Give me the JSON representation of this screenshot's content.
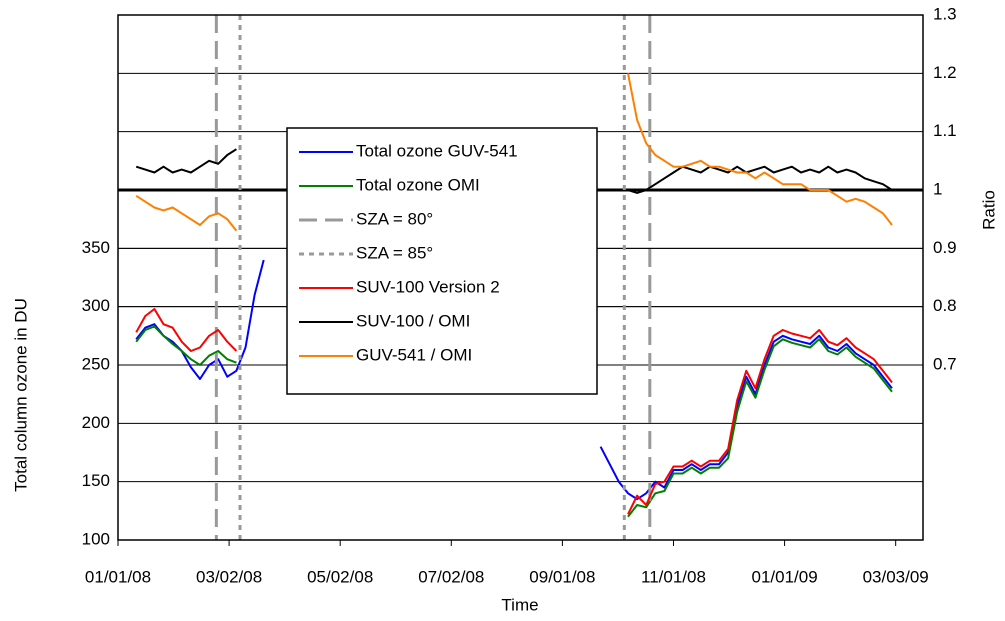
{
  "chart_data": {
    "type": "line",
    "x_label": "Time",
    "y_label": "Total column ozone in DU",
    "y2_label": "Ratio",
    "xlim": [
      0,
      442
    ],
    "xticks": [
      {
        "value": 0,
        "label": "01/01/08"
      },
      {
        "value": 61,
        "label": "03/02/08"
      },
      {
        "value": 122,
        "label": "05/02/08"
      },
      {
        "value": 183,
        "label": "07/02/08"
      },
      {
        "value": 244,
        "label": "09/01/08"
      },
      {
        "value": 305,
        "label": "11/01/08"
      },
      {
        "value": 366,
        "label": "01/01/09"
      },
      {
        "value": 427,
        "label": "03/03/09"
      }
    ],
    "ylim": [
      100,
      550
    ],
    "yticks": [
      100,
      150,
      200,
      250,
      300,
      350
    ],
    "y2lim": [
      0.4,
      1.3
    ],
    "y2ticks": [
      0.7,
      0.8,
      0.9,
      {
        "value": 1,
        "label": "1"
      },
      1.1,
      1.2,
      1.3
    ],
    "reference_line": 1,
    "grid": true,
    "legend": "center",
    "x": [
      10,
      15,
      20,
      25,
      30,
      35,
      40,
      45,
      50,
      55,
      60,
      65,
      70,
      75,
      80,
      170,
      265,
      270,
      275,
      280,
      285,
      290,
      295,
      300,
      305,
      310,
      315,
      320,
      325,
      330,
      335,
      340,
      345,
      350,
      355,
      360,
      365,
      370,
      375,
      380,
      385,
      390,
      395,
      400,
      405,
      410,
      415,
      420,
      425
    ],
    "series": [
      {
        "name": "Total ozone GUV-541",
        "color": "#0000ff",
        "values": [
          272,
          282,
          285,
          275,
          270,
          262,
          248,
          238,
          250,
          255,
          240,
          245,
          265,
          310,
          340,
          null,
          180,
          165,
          150,
          140,
          135,
          140,
          150,
          145,
          160,
          160,
          165,
          160,
          165,
          165,
          175,
          215,
          240,
          225,
          250,
          270,
          275,
          272,
          270,
          268,
          275,
          265,
          262,
          268,
          260,
          255,
          250,
          240,
          230
        ]
      },
      {
        "name": "Total ozone OMI",
        "color": "#008000",
        "values": [
          270,
          280,
          283,
          275,
          268,
          262,
          255,
          250,
          258,
          262,
          255,
          252,
          null,
          null,
          null,
          null,
          null,
          null,
          null,
          120,
          130,
          128,
          140,
          142,
          157,
          157,
          162,
          157,
          162,
          162,
          170,
          210,
          236,
          222,
          246,
          266,
          272,
          269,
          267,
          265,
          272,
          262,
          259,
          265,
          257,
          252,
          247,
          237,
          227
        ]
      },
      {
        "name": "SZA = 80°",
        "color": "#999999",
        "dash": "dashed",
        "vlines": [
          54,
          292
        ]
      },
      {
        "name": "SZA = 85°",
        "color": "#999999",
        "dash": "dotted",
        "vlines": [
          67,
          278
        ]
      },
      {
        "name": "SUV-100 Version 2",
        "color": "#ff0000",
        "values": [
          278,
          292,
          298,
          285,
          282,
          270,
          262,
          265,
          275,
          280,
          270,
          262,
          null,
          null,
          null,
          null,
          null,
          null,
          null,
          122,
          138,
          130,
          148,
          150,
          163,
          163,
          168,
          163,
          168,
          168,
          178,
          220,
          245,
          230,
          255,
          275,
          280,
          277,
          275,
          273,
          280,
          270,
          267,
          273,
          265,
          260,
          255,
          245,
          235
        ]
      },
      {
        "name": "SUV-100 / OMI",
        "color": "#000000",
        "axis": "y2",
        "values": [
          1.04,
          1.035,
          1.03,
          1.04,
          1.03,
          1.035,
          1.03,
          1.04,
          1.05,
          1.045,
          1.06,
          1.07,
          null,
          null,
          null,
          null,
          null,
          null,
          null,
          1.0,
          0.995,
          1.0,
          1.01,
          1.02,
          1.03,
          1.04,
          1.035,
          1.03,
          1.04,
          1.035,
          1.03,
          1.04,
          1.03,
          1.035,
          1.04,
          1.03,
          1.035,
          1.04,
          1.03,
          1.035,
          1.03,
          1.04,
          1.03,
          1.035,
          1.03,
          1.02,
          1.015,
          1.01,
          1.0
        ]
      },
      {
        "name": "GUV-541 / OMI",
        "color": "#ff7f00",
        "axis": "y2",
        "values": [
          0.99,
          0.98,
          0.97,
          0.965,
          0.97,
          0.96,
          0.95,
          0.94,
          0.955,
          0.96,
          0.95,
          0.93,
          null,
          null,
          null,
          null,
          null,
          null,
          null,
          1.2,
          1.12,
          1.08,
          1.06,
          1.05,
          1.04,
          1.04,
          1.045,
          1.05,
          1.04,
          1.04,
          1.035,
          1.03,
          1.03,
          1.02,
          1.03,
          1.02,
          1.01,
          1.01,
          1.01,
          1.0,
          1.0,
          1.0,
          0.99,
          0.98,
          0.985,
          0.98,
          0.97,
          0.96,
          0.94
        ]
      }
    ]
  }
}
